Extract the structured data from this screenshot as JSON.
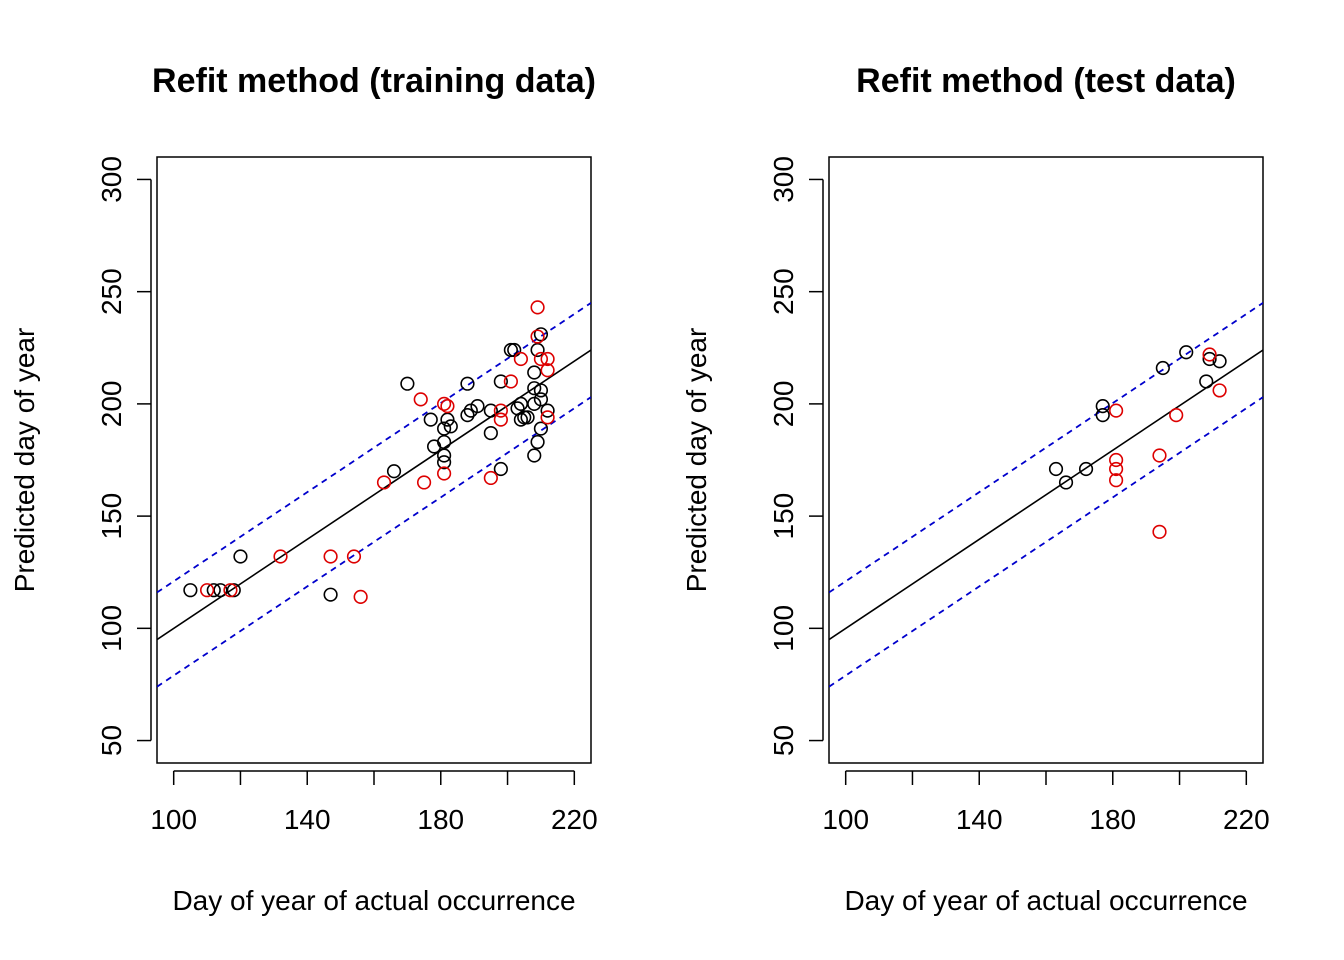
{
  "chart_data": [
    {
      "type": "scatter",
      "title": "Refit method (training data)",
      "xlabel": "Day of year of actual occurrence",
      "ylabel": "Predicted day of year",
      "xlim": [
        95,
        225
      ],
      "ylim": [
        40,
        310
      ],
      "xticks": [
        100,
        120,
        140,
        160,
        180,
        200,
        220
      ],
      "xtick_labels": [
        "100",
        "",
        "140",
        "",
        "180",
        "",
        "220"
      ],
      "yticks": [
        50,
        100,
        150,
        200,
        250,
        300
      ],
      "ytick_labels": [
        "50",
        "100",
        "150",
        "200",
        "250",
        "300"
      ],
      "grid": false,
      "lines": [
        {
          "style": "solid",
          "color": "#000000",
          "x": [
            95,
            225
          ],
          "y": [
            95,
            224
          ]
        },
        {
          "style": "dashed",
          "color": "#0000cc",
          "x": [
            95,
            225
          ],
          "y": [
            116,
            245
          ]
        },
        {
          "style": "dashed",
          "color": "#0000cc",
          "x": [
            95,
            225
          ],
          "y": [
            74,
            203
          ]
        }
      ],
      "series": [
        {
          "color": "#000000",
          "points": [
            [
              105,
              117
            ],
            [
              112,
              117
            ],
            [
              114,
              117
            ],
            [
              118,
              117
            ],
            [
              120,
              132
            ],
            [
              147,
              115
            ],
            [
              166,
              170
            ],
            [
              170,
              209
            ],
            [
              177,
              193
            ],
            [
              178,
              181
            ],
            [
              181,
              189
            ],
            [
              181,
              183
            ],
            [
              181,
              177
            ],
            [
              181,
              174
            ],
            [
              182,
              193
            ],
            [
              183,
              190
            ],
            [
              188,
              195
            ],
            [
              188,
              209
            ],
            [
              189,
              197
            ],
            [
              191,
              199
            ],
            [
              195,
              187
            ],
            [
              195,
              197
            ],
            [
              198,
              210
            ],
            [
              198,
              171
            ],
            [
              201,
              224
            ],
            [
              202,
              224
            ],
            [
              203,
              198
            ],
            [
              204,
              193
            ],
            [
              204,
              200
            ],
            [
              205,
              194
            ],
            [
              206,
              194
            ],
            [
              208,
              214
            ],
            [
              208,
              207
            ],
            [
              208,
              177
            ],
            [
              208,
              200
            ],
            [
              209,
              183
            ],
            [
              209,
              224
            ],
            [
              210,
              231
            ],
            [
              210,
              189
            ],
            [
              210,
              206
            ],
            [
              210,
              202
            ],
            [
              212,
              197
            ]
          ]
        },
        {
          "color": "#dd0000",
          "points": [
            [
              110,
              117
            ],
            [
              117,
              117
            ],
            [
              132,
              132
            ],
            [
              147,
              132
            ],
            [
              154,
              132
            ],
            [
              156,
              114
            ],
            [
              163,
              165
            ],
            [
              174,
              202
            ],
            [
              175,
              165
            ],
            [
              181,
              200
            ],
            [
              181,
              169
            ],
            [
              182,
              199
            ],
            [
              195,
              167
            ],
            [
              198,
              197
            ],
            [
              198,
              193
            ],
            [
              201,
              210
            ],
            [
              204,
              220
            ],
            [
              209,
              243
            ],
            [
              209,
              230
            ],
            [
              210,
              220
            ],
            [
              212,
              220
            ],
            [
              212,
              215
            ],
            [
              212,
              194
            ]
          ]
        }
      ]
    },
    {
      "type": "scatter",
      "title": "Refit method (test data)",
      "xlabel": "Day of year of actual occurrence",
      "ylabel": "Predicted day of year",
      "xlim": [
        95,
        225
      ],
      "ylim": [
        40,
        310
      ],
      "xticks": [
        100,
        120,
        140,
        160,
        180,
        200,
        220
      ],
      "xtick_labels": [
        "100",
        "",
        "140",
        "",
        "180",
        "",
        "220"
      ],
      "yticks": [
        50,
        100,
        150,
        200,
        250,
        300
      ],
      "ytick_labels": [
        "50",
        "100",
        "150",
        "200",
        "250",
        "300"
      ],
      "grid": false,
      "lines": [
        {
          "style": "solid",
          "color": "#000000",
          "x": [
            95,
            225
          ],
          "y": [
            95,
            224
          ]
        },
        {
          "style": "dashed",
          "color": "#0000cc",
          "x": [
            95,
            225
          ],
          "y": [
            116,
            245
          ]
        },
        {
          "style": "dashed",
          "color": "#0000cc",
          "x": [
            95,
            225
          ],
          "y": [
            74,
            203
          ]
        }
      ],
      "series": [
        {
          "color": "#000000",
          "points": [
            [
              163,
              171
            ],
            [
              166,
              165
            ],
            [
              172,
              171
            ],
            [
              177,
              199
            ],
            [
              177,
              195
            ],
            [
              195,
              216
            ],
            [
              202,
              223
            ],
            [
              208,
              210
            ],
            [
              209,
              220
            ],
            [
              212,
              219
            ]
          ]
        },
        {
          "color": "#dd0000",
          "points": [
            [
              181,
              197
            ],
            [
              181,
              175
            ],
            [
              181,
              171
            ],
            [
              181,
              166
            ],
            [
              194,
              177
            ],
            [
              194,
              143
            ],
            [
              199,
              195
            ],
            [
              209,
              222
            ],
            [
              212,
              206
            ]
          ]
        }
      ]
    }
  ]
}
